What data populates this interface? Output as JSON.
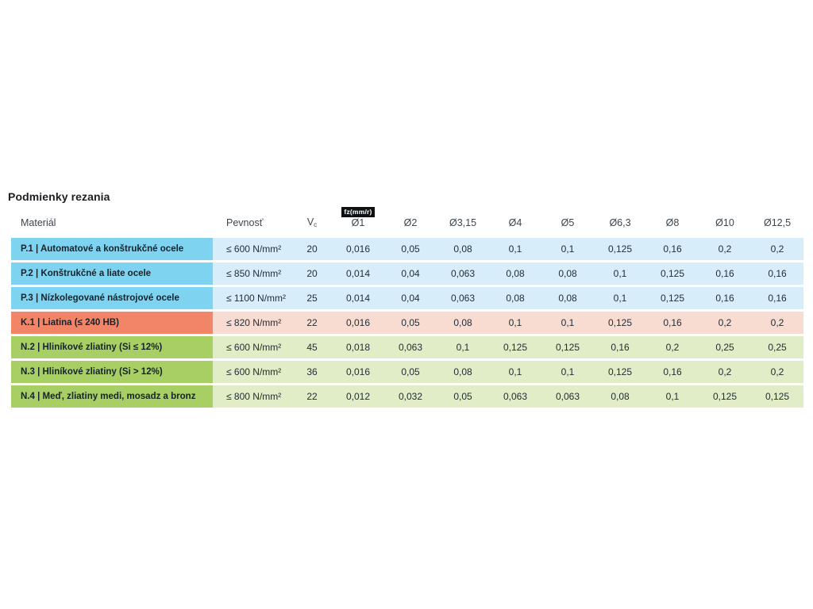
{
  "title": "Podmienky rezania",
  "table": {
    "badge_label": "fz(mm/r)",
    "headers": {
      "material": "Materiál",
      "strength": "Pevnosť",
      "vc_base": "V",
      "vc_sub": "c",
      "diameters": [
        "Ø1",
        "Ø2",
        "Ø3,15",
        "Ø4",
        "Ø5",
        "Ø6,3",
        "Ø8",
        "Ø10",
        "Ø12,5"
      ]
    },
    "group_colors": {
      "P": {
        "head": "#7ed3f0",
        "body": "#d7edf9"
      },
      "K": {
        "head": "#f28568",
        "body": "#f9dcd1"
      },
      "N": {
        "head": "#a7cf63",
        "body": "#e0edc6"
      }
    },
    "rows": [
      {
        "group": "P",
        "material": "P.1 | Automatové a konštrukčné ocele",
        "strength": "≤ 600 N/mm²",
        "vc": "20",
        "values": [
          "0,016",
          "0,05",
          "0,08",
          "0,1",
          "0,1",
          "0,125",
          "0,16",
          "0,2",
          "0,2"
        ]
      },
      {
        "group": "P",
        "material": "P.2 | Konštrukčné a liate ocele",
        "strength": "≤ 850 N/mm²",
        "vc": "20",
        "values": [
          "0,014",
          "0,04",
          "0,063",
          "0,08",
          "0,08",
          "0,1",
          "0,125",
          "0,16",
          "0,16"
        ]
      },
      {
        "group": "P",
        "material": "P.3 | Nízkolegované nástrojové ocele",
        "strength": "≤ 1100 N/mm²",
        "vc": "25",
        "values": [
          "0,014",
          "0,04",
          "0,063",
          "0,08",
          "0,08",
          "0,1",
          "0,125",
          "0,16",
          "0,16"
        ]
      },
      {
        "group": "K",
        "material": "K.1 | Liatina (≤ 240 HB)",
        "strength": "≤ 820 N/mm²",
        "vc": "22",
        "values": [
          "0,016",
          "0,05",
          "0,08",
          "0,1",
          "0,1",
          "0,125",
          "0,16",
          "0,2",
          "0,2"
        ]
      },
      {
        "group": "N",
        "material": "N.2 | Hliníkové zliatiny (Si ≤ 12%)",
        "strength": "≤ 600 N/mm²",
        "vc": "45",
        "values": [
          "0,018",
          "0,063",
          "0,1",
          "0,125",
          "0,125",
          "0,16",
          "0,2",
          "0,25",
          "0,25"
        ]
      },
      {
        "group": "N",
        "material": "N.3 | Hliníkové zliatiny (Si > 12%)",
        "strength": "≤ 600 N/mm²",
        "vc": "36",
        "values": [
          "0,016",
          "0,05",
          "0,08",
          "0,1",
          "0,1",
          "0,125",
          "0,16",
          "0,2",
          "0,2"
        ]
      },
      {
        "group": "N",
        "material": "N.4 | Meď, zliatiny medi, mosadz a bronz",
        "strength": "≤ 800 N/mm²",
        "vc": "22",
        "values": [
          "0,012",
          "0,032",
          "0,05",
          "0,063",
          "0,063",
          "0,08",
          "0,1",
          "0,125",
          "0,125"
        ]
      }
    ]
  }
}
